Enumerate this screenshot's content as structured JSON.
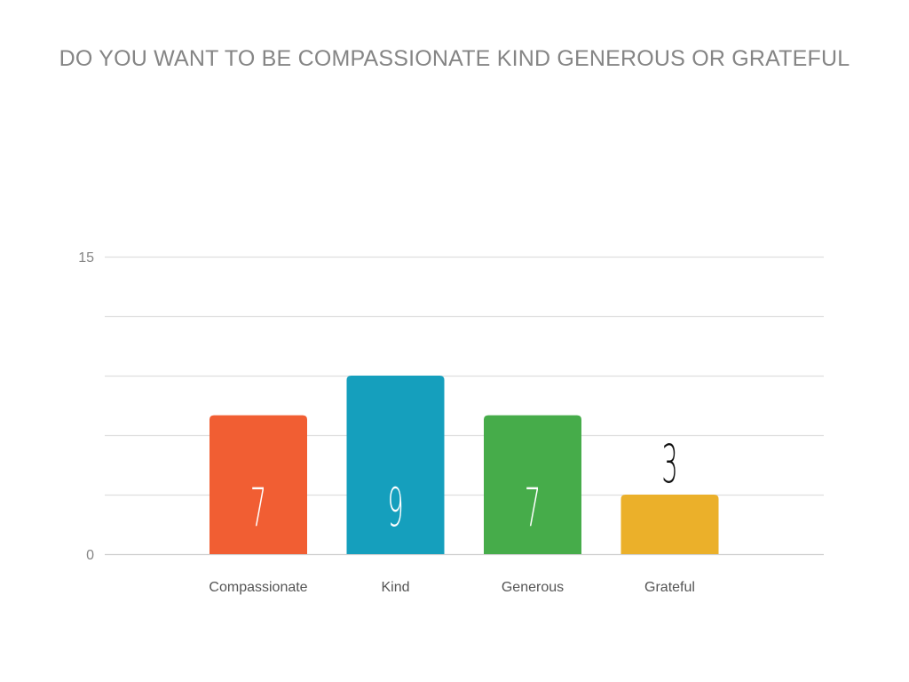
{
  "slide": {
    "title": "DO YOU WANT TO BE COMPASSIONATE KIND GENEROUS OR GRATEFUL"
  },
  "chart_data": {
    "type": "bar",
    "categories": [
      "Compassionate",
      "Kind",
      "Generous",
      "Grateful"
    ],
    "values": [
      7,
      9,
      7,
      3
    ],
    "data_labels": [
      "7",
      "9",
      "7",
      "3"
    ],
    "colors": [
      "#F15E33",
      "#159FBD",
      "#46AC4A",
      "#EBB02A"
    ],
    "label_colors": [
      "#ffffff",
      "#ffffff",
      "#ffffff",
      "#111111"
    ],
    "label_inside": [
      true,
      true,
      true,
      false
    ],
    "ylim": [
      0,
      15
    ],
    "yticks": [
      0,
      3,
      6,
      9,
      12,
      15
    ],
    "ytick_labels": [
      "0",
      "15"
    ],
    "grid": true,
    "legend": "none",
    "title": "DO YOU WANT TO BE COMPASSIONATE KIND GENEROUS OR GRATEFUL",
    "xlabel": "",
    "ylabel": ""
  }
}
